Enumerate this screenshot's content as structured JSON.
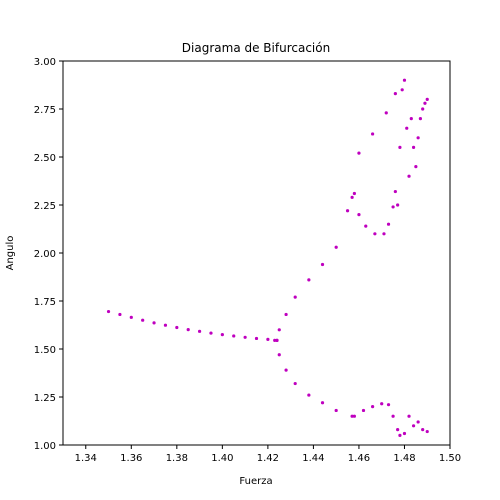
{
  "chart_data": {
    "type": "scatter",
    "title": "Diagrama de Bifurcación",
    "xlabel": "Fuerza",
    "ylabel": "Angulo",
    "xlim": [
      1.33,
      1.5
    ],
    "ylim": [
      1.0,
      3.0
    ],
    "xticks": [
      "1.34",
      "1.36",
      "1.38",
      "1.40",
      "1.42",
      "1.44",
      "1.46",
      "1.48",
      "1.50"
    ],
    "yticks": [
      "1.00",
      "1.25",
      "1.50",
      "1.75",
      "2.00",
      "2.25",
      "2.50",
      "2.75",
      "3.00"
    ],
    "grid": false,
    "color": "#bf00bf",
    "series": [
      {
        "values": [
          [
            1.35,
            1.695
          ],
          [
            1.355,
            1.68
          ],
          [
            1.36,
            1.665
          ],
          [
            1.365,
            1.65
          ],
          [
            1.37,
            1.636
          ],
          [
            1.375,
            1.624
          ],
          [
            1.38,
            1.612
          ],
          [
            1.385,
            1.601
          ],
          [
            1.39,
            1.592
          ],
          [
            1.395,
            1.583
          ],
          [
            1.4,
            1.575
          ],
          [
            1.405,
            1.568
          ],
          [
            1.41,
            1.561
          ],
          [
            1.415,
            1.555
          ],
          [
            1.42,
            1.55
          ],
          [
            1.423,
            1.545
          ]
        ]
      },
      {
        "values": [
          [
            1.424,
            1.545
          ],
          [
            1.425,
            1.6
          ],
          [
            1.428,
            1.68
          ],
          [
            1.432,
            1.77
          ],
          [
            1.438,
            1.86
          ],
          [
            1.444,
            1.94
          ],
          [
            1.45,
            2.03
          ],
          [
            1.455,
            2.22
          ],
          [
            1.457,
            2.29
          ]
        ]
      },
      {
        "values": [
          [
            1.424,
            1.545
          ],
          [
            1.425,
            1.47
          ],
          [
            1.428,
            1.39
          ],
          [
            1.432,
            1.32
          ],
          [
            1.438,
            1.26
          ],
          [
            1.444,
            1.22
          ],
          [
            1.45,
            1.18
          ],
          [
            1.457,
            1.15
          ]
        ]
      },
      {
        "values": [
          [
            1.458,
            2.31
          ],
          [
            1.46,
            2.52
          ],
          [
            1.466,
            2.62
          ],
          [
            1.472,
            2.73
          ],
          [
            1.476,
            2.83
          ],
          [
            1.46,
            2.2
          ],
          [
            1.463,
            2.14
          ],
          [
            1.467,
            2.1
          ],
          [
            1.471,
            2.1
          ],
          [
            1.473,
            2.15
          ],
          [
            1.475,
            2.24
          ],
          [
            1.476,
            2.32
          ]
        ]
      },
      {
        "values": [
          [
            1.477,
            2.25
          ],
          [
            1.478,
            2.55
          ],
          [
            1.479,
            2.85
          ],
          [
            1.48,
            2.9
          ],
          [
            1.481,
            2.65
          ],
          [
            1.482,
            2.4
          ],
          [
            1.483,
            2.7
          ],
          [
            1.484,
            2.55
          ],
          [
            1.485,
            2.45
          ],
          [
            1.486,
            2.6
          ],
          [
            1.487,
            2.7
          ],
          [
            1.488,
            2.75
          ],
          [
            1.489,
            2.78
          ],
          [
            1.49,
            2.8
          ]
        ]
      },
      {
        "values": [
          [
            1.458,
            1.15
          ],
          [
            1.462,
            1.18
          ],
          [
            1.466,
            1.2
          ],
          [
            1.47,
            1.215
          ],
          [
            1.473,
            1.21
          ],
          [
            1.475,
            1.15
          ],
          [
            1.477,
            1.08
          ],
          [
            1.478,
            1.05
          ],
          [
            1.48,
            1.06
          ],
          [
            1.482,
            1.15
          ],
          [
            1.484,
            1.1
          ],
          [
            1.486,
            1.12
          ],
          [
            1.488,
            1.08
          ],
          [
            1.49,
            1.07
          ]
        ]
      }
    ]
  }
}
